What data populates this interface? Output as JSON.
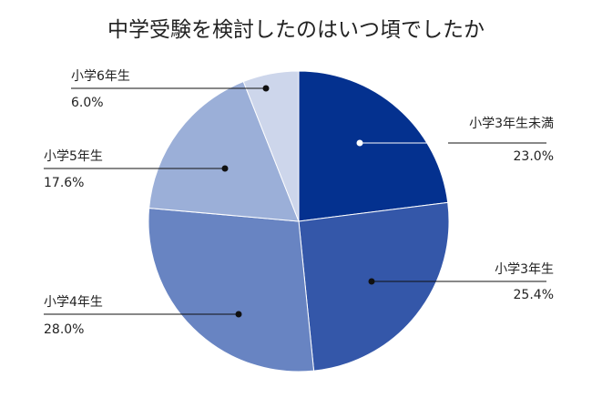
{
  "chart_data": {
    "type": "pie",
    "title": "中学受験を検討したのはいつ頃でしたか",
    "start": "top",
    "direction": "clockwise",
    "slices": [
      {
        "label": "小学3年生未満",
        "value": 23.0,
        "value_label": "23.0%",
        "color": "#04318f"
      },
      {
        "label": "小学3年生",
        "value": 25.4,
        "value_label": "25.4%",
        "color": "#3457a9"
      },
      {
        "label": "小学4年生",
        "value": 28.0,
        "value_label": "28.0%",
        "color": "#6884c2"
      },
      {
        "label": "小学5年生",
        "value": 17.6,
        "value_label": "17.6%",
        "color": "#9bafd8"
      },
      {
        "label": "小学6年生",
        "value": 6.0,
        "value_label": "6.0%",
        "color": "#cdd6eb"
      }
    ]
  }
}
